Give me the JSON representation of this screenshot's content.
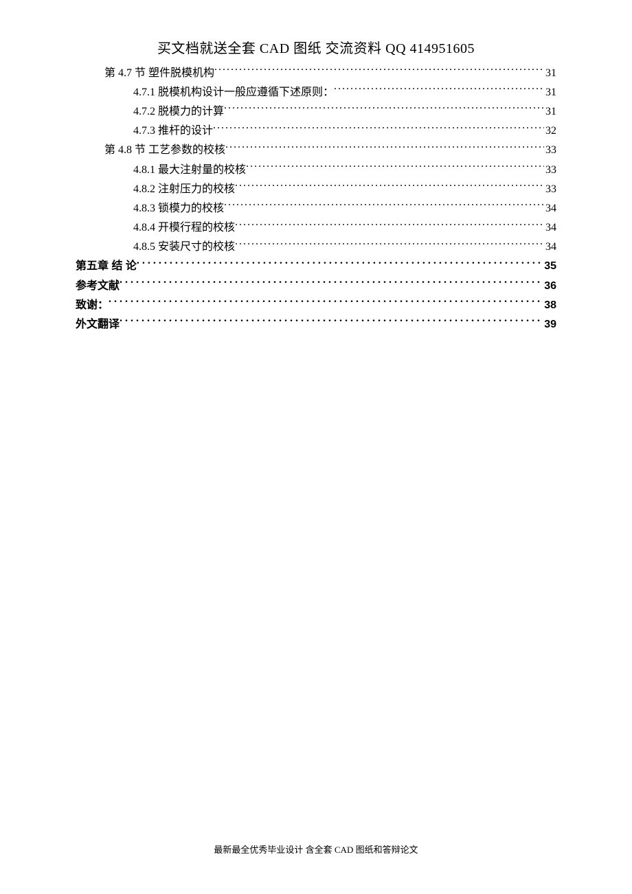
{
  "header": "买文档就送全套 CAD 图纸   交流资料 QQ 414951605",
  "footer": "最新最全优秀毕业设计 含全套 CAD 图纸和答辩论文",
  "toc": [
    {
      "label": "第 4.7 节  塑件脱模机构",
      "page": "31",
      "indent": 1,
      "bold": false,
      "leader": "dotted"
    },
    {
      "label": "4.7.1  脱模机构设计一般应遵循下述原则：",
      "page": "31",
      "indent": 2,
      "bold": false,
      "leader": "dotted"
    },
    {
      "label": "4.7.2  脱模力的计算",
      "page": "31",
      "indent": 2,
      "bold": false,
      "leader": "dotted"
    },
    {
      "label": "4.7.3  推杆的设计",
      "page": "32",
      "indent": 2,
      "bold": false,
      "leader": "dotted"
    },
    {
      "label": "第 4.8 节  工艺参数的校核",
      "page": "33",
      "indent": 1,
      "bold": false,
      "leader": "dotted"
    },
    {
      "label": "4.8.1  最大注射量的校核",
      "page": "33",
      "indent": 2,
      "bold": false,
      "leader": "dotted"
    },
    {
      "label": "4.8.2  注射压力的校核",
      "page": "33",
      "indent": 2,
      "bold": false,
      "leader": "dotted"
    },
    {
      "label": "4.8.3  锁模力的校核",
      "page": "34",
      "indent": 2,
      "bold": false,
      "leader": "dotted"
    },
    {
      "label": "4.8.4  开模行程的校核",
      "page": "34",
      "indent": 2,
      "bold": false,
      "leader": "dotted"
    },
    {
      "label": "4.8.5  安装尺寸的校核",
      "page": "34",
      "indent": 2,
      "bold": false,
      "leader": "dotted"
    },
    {
      "label": "第五章 结   论",
      "page": "35",
      "indent": 0,
      "bold": true,
      "leader": "spaced"
    },
    {
      "label": "参考文献",
      "page": "36",
      "indent": 0,
      "bold": true,
      "leader": "spaced"
    },
    {
      "label": "致谢：",
      "page": "38",
      "indent": 0,
      "bold": true,
      "leader": "spaced"
    },
    {
      "label": "外文翻译",
      "page": "39",
      "indent": 0,
      "bold": true,
      "leader": "spaced"
    }
  ]
}
